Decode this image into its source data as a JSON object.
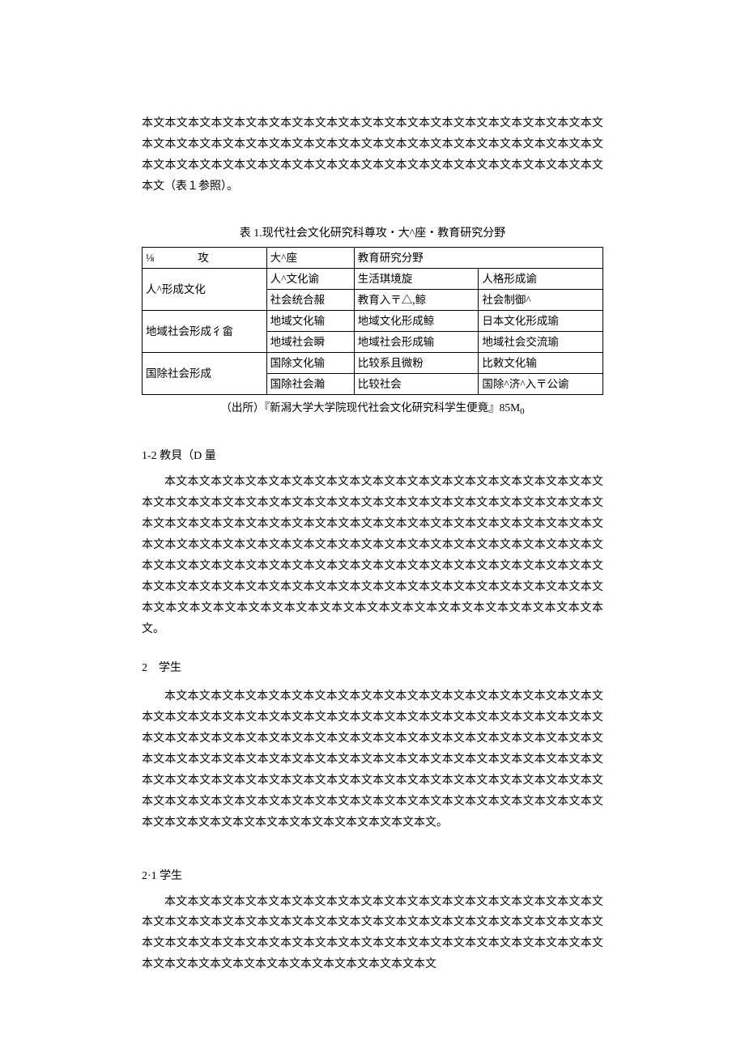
{
  "intro_para": "本文本文本文本文本文本文本文本文本文本文本文本文本文本文本文本文本文本文本文本文本文本文本文本文本文本文本文本文本文本文本文本文本文本文本文本文本文本文本文本文本文本文本文本文本文本文本文本文本文本文本文本文本文本文本文本文本文本文本文本文本文（表１参照）。",
  "table": {
    "title": "表 1.现代社会文化研究科尊攻・大^座・教育研究分野",
    "header": [
      "⅛　　　　攻",
      "大^座",
      "教育研究分野"
    ],
    "rows": [
      {
        "span_label": "人^形成文化",
        "sub": [
          [
            "人^文化谕",
            "生活琪境旋",
            "人格形成谕"
          ],
          [
            "社会统合赧",
            "教育入〒△,鲸",
            "社会制御^"
          ]
        ]
      },
      {
        "span_label": "地域社会形成彳畲",
        "sub": [
          [
            "地域文化输",
            "地域文化形成鲸",
            "日本文化形成瑜"
          ],
          [
            "地域社会瞬",
            "地域社会形成输",
            "地域社会交流瑜"
          ]
        ]
      },
      {
        "span_label": "国除社会形成",
        "sub": [
          [
            "国除文化输",
            "比较系且微粉",
            "比敕文化输"
          ],
          [
            "国除社会瀚",
            "比较社会",
            "国除^济^入〒公谕"
          ]
        ]
      }
    ],
    "note_prefix": "（出所）『新潟大学大学院现代社会文化研究科学生便竟』85M",
    "note_sub": "0"
  },
  "sec_1_2": {
    "heading": "1-2 教貝（D 量",
    "para": "本文本文本文本文本文本文本文本文本文本文本文本文本文本文本文本文本文本文本文本文本文本文本文本文本文本文本文本文本文本文本文本文本文本文本文本文本文本文本文本文本文本文本文本文本文本文本文本文本文本文本文本文本文本文本文本文本文本文本文本文本文本文本文本文本文本文本文本文本文本文本文本文本文本文本文本文本文本文本文本文本文本文本文本文本文本文本文本文本文本文本文本文本文本文本文本文本文本文本文本文本文本文本文本文本文本文本文本文本文本文本文本文本文本文本文本文本文本文本文本文本文本文本文本文本文本文本文本文本文本文本文本文本文本文本文本文本文本文本文。"
  },
  "sec_2": {
    "heading": "2　学生",
    "para": "本文本文本文本文本文本文本文本文本文本文本文本文本文本文本文本文本文本文本文本文本文本文本文本文本文本文本文本文本文本文本文本文本文本文本文本文本文本文本文本文本文本文本文本文本文本文本文本文本文本文本文本文本文本文本文本文本文本文本文本文本文本文本文本文本文本文本文本文本文本文本文本文本文本文本文本文本文本文本文本文本文本文本文本文本文本文本文本文本文本文本文本文本文本文本文本文本文本文本文本文本文本文本文本文本文本文本文本文本文本文本文本文本文本文本文本文本文本文本文本文本文本文本文本文本文本文本文本文本文本文本文本文。"
  },
  "sec_2_1": {
    "heading": "2·1 学生",
    "para": "本文本文本文本文本文本文本文本文本文本文本文本文本文本文本文本文本文本文本文本文本文本文本文本文本文本文本文本文本文本文本文本文本文本文本文本文本文本文本文本文本文本文本文本文本文本文本文本文本文本文本文本文本文本文本文本文本文本文本文本文本文本文本文本文本文本文本文本文本文本文本文本文"
  }
}
